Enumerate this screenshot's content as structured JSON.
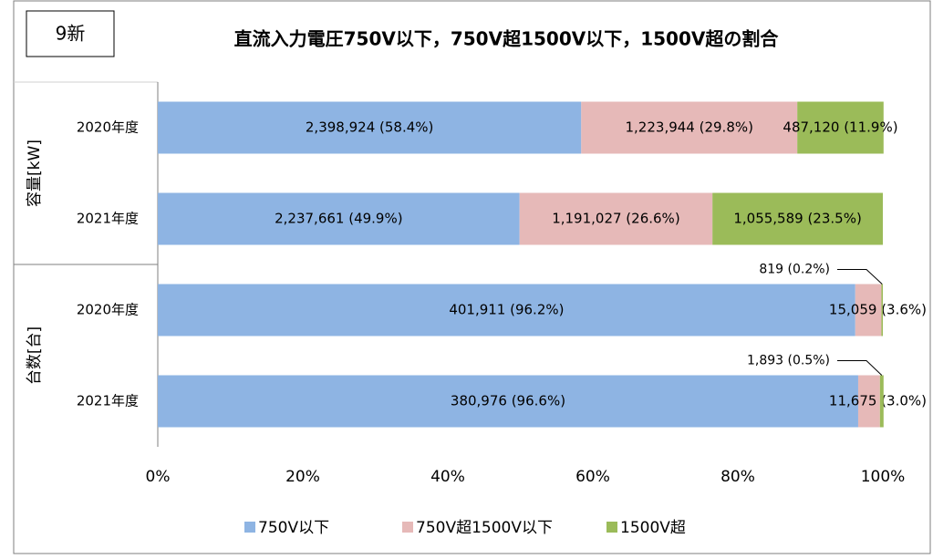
{
  "chart_data": {
    "type": "stacked_barh",
    "badge": "9新",
    "title": "直流入力電圧750V以下，750V超1500V以下，1500V超の割合",
    "groups": [
      "容量[kW]",
      "台数[台]"
    ],
    "categories": [
      "2020年度",
      "2021年度",
      "2020年度",
      "2021年度"
    ],
    "series": [
      {
        "name": "750V以下",
        "color": "#8eb4e3",
        "values": [
          58.4,
          49.9,
          96.2,
          96.6
        ],
        "value_labels": [
          "2,398,924 (58.4%)",
          "2,237,661 (49.9%)",
          "401,911 (96.2%)",
          "380,976 (96.6%)"
        ]
      },
      {
        "name": "750V超1500V以下",
        "color": "#e6b9b8",
        "values": [
          29.8,
          26.6,
          3.6,
          3.0
        ],
        "value_labels": [
          "1,223,944 (29.8%)",
          "1,191,027 (26.6%)",
          "15,059 (3.6%)",
          "11,675 (3.0%)"
        ]
      },
      {
        "name": "1500V超",
        "color": "#9bbb59",
        "values": [
          11.9,
          23.5,
          0.2,
          0.5
        ],
        "value_labels": [
          "487,120 (11.9%)",
          "1,055,589 (23.5%)",
          "819 (0.2%)",
          "1,893 (0.5%)"
        ]
      }
    ],
    "xlim": [
      0,
      100
    ],
    "xticks": [
      {
        "value": 0,
        "label": "0%"
      },
      {
        "value": 20,
        "label": "20%"
      },
      {
        "value": 40,
        "label": "40%"
      },
      {
        "value": 60,
        "label": "60%"
      },
      {
        "value": 80,
        "label": "80%"
      },
      {
        "value": 100,
        "label": "100%"
      }
    ],
    "legend": "bottom"
  }
}
